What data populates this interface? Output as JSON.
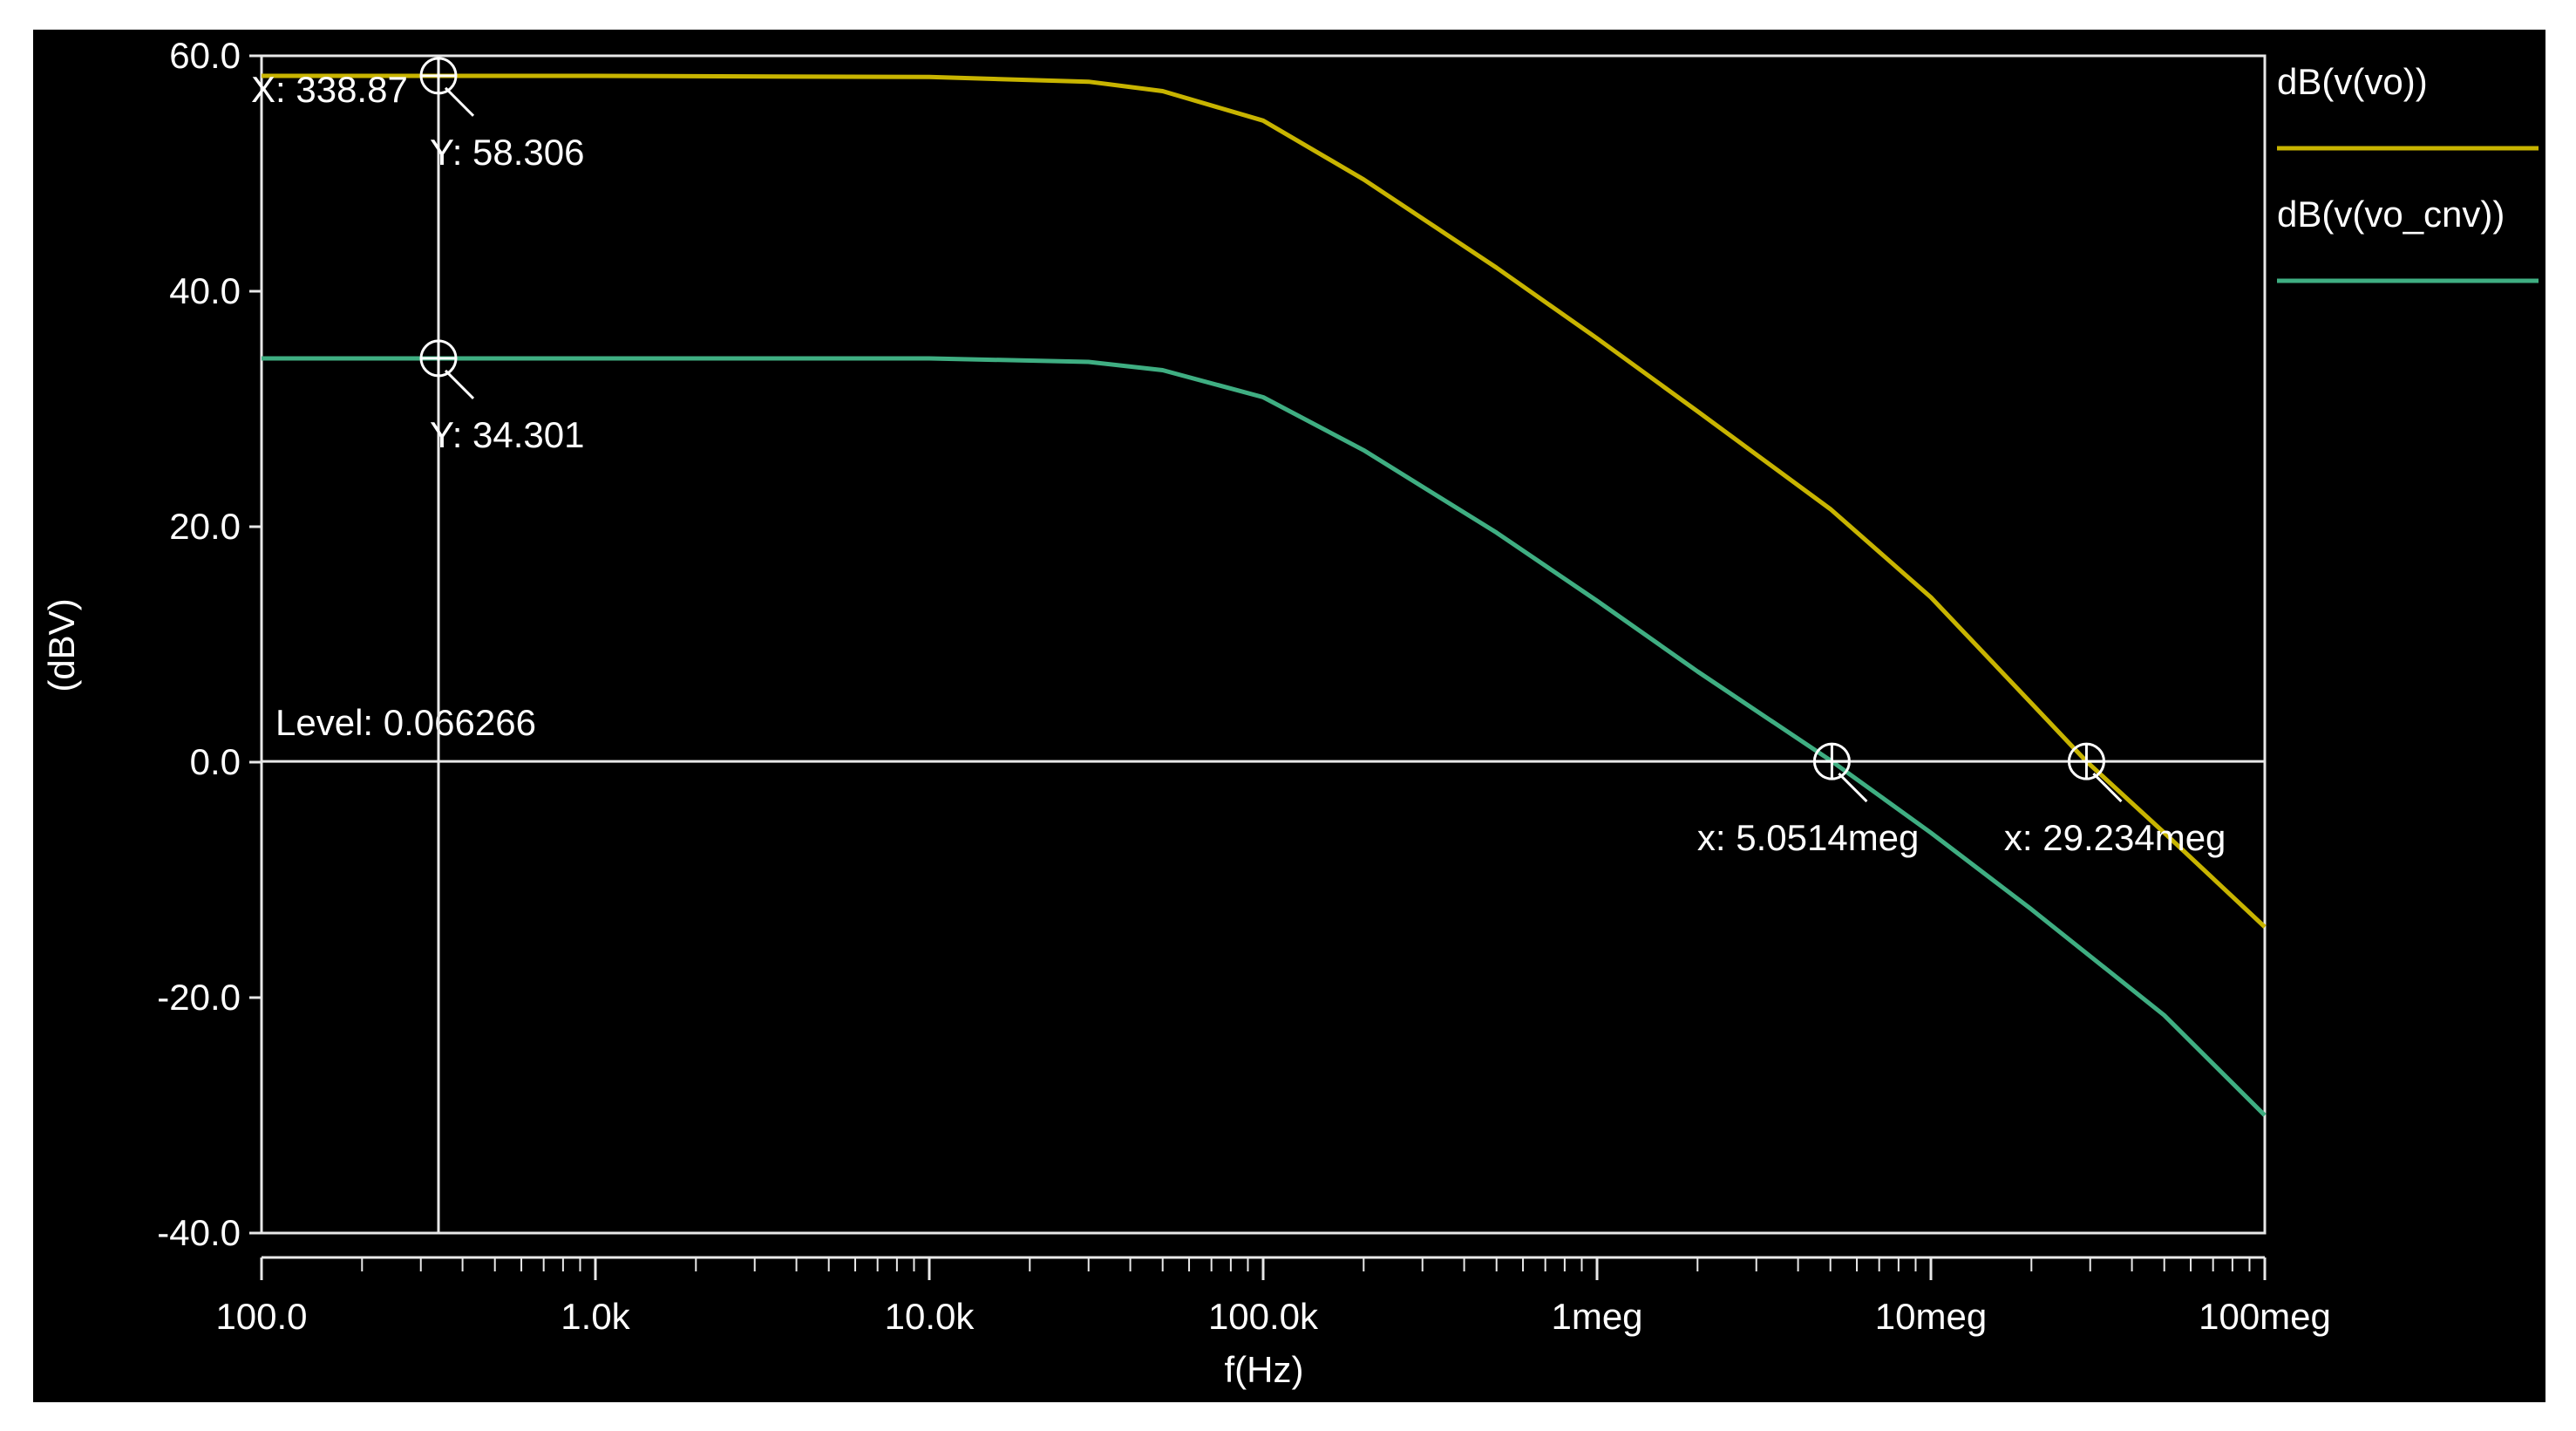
{
  "chart_data": {
    "type": "line",
    "xscale": "log",
    "xlim": [
      100,
      100000000
    ],
    "ylim": [
      -40,
      60
    ],
    "grid": false,
    "legend_position": "right",
    "xlabel": "f(Hz)",
    "ylabel": "(dBV)",
    "xtick_labels": [
      "100.0",
      "1.0k",
      "10.0k",
      "100.0k",
      "1meg",
      "10meg",
      "100meg"
    ],
    "xtick_values": [
      100,
      1000,
      10000,
      100000,
      1000000,
      10000000,
      100000000
    ],
    "ytick_labels": [
      "60.0",
      "40.0",
      "20.0",
      "0.0",
      "-20.0",
      "-40.0"
    ],
    "ytick_values": [
      60,
      40,
      20,
      0,
      -20,
      -40
    ],
    "series": [
      {
        "name": "dB(v(vo))",
        "color": "#c8b400",
        "x": [
          100,
          1000,
          10000,
          30000,
          50000,
          100000,
          200000,
          500000,
          1000000,
          2000000,
          5000000,
          10000000,
          20000000,
          29234000,
          50000000,
          100000000
        ],
        "y": [
          58.3,
          58.3,
          58.2,
          57.8,
          57.0,
          54.5,
          49.5,
          42.0,
          36.0,
          29.8,
          21.5,
          14.0,
          5.0,
          0.066,
          -6.0,
          -14.0
        ]
      },
      {
        "name": "dB(v(vo_cnv))",
        "color": "#3fae82",
        "x": [
          100,
          1000,
          10000,
          30000,
          50000,
          100000,
          200000,
          500000,
          1000000,
          2000000,
          5051400,
          10000000,
          20000000,
          50000000,
          100000000
        ],
        "y": [
          34.3,
          34.3,
          34.3,
          34.0,
          33.3,
          31.0,
          26.5,
          19.5,
          13.7,
          7.7,
          0.066,
          -6.0,
          -12.5,
          -21.5,
          -30.0
        ]
      }
    ],
    "level_line": {
      "y": 0.066266,
      "label": "Level: 0.066266"
    },
    "cursor_line": {
      "x": 338.87
    },
    "annotations": [
      {
        "x": 338.87,
        "y": 58.306,
        "labels": [
          "X: 338.87",
          "Y: 58.306"
        ]
      },
      {
        "x": 338.87,
        "y": 34.301,
        "labels": [
          "Y: 34.301"
        ]
      },
      {
        "x": 5051400,
        "y": 0.066266,
        "labels": [
          "x: 5.0514meg"
        ]
      },
      {
        "x": 29234000,
        "y": 0.066266,
        "labels": [
          "x: 29.234meg"
        ]
      }
    ]
  }
}
